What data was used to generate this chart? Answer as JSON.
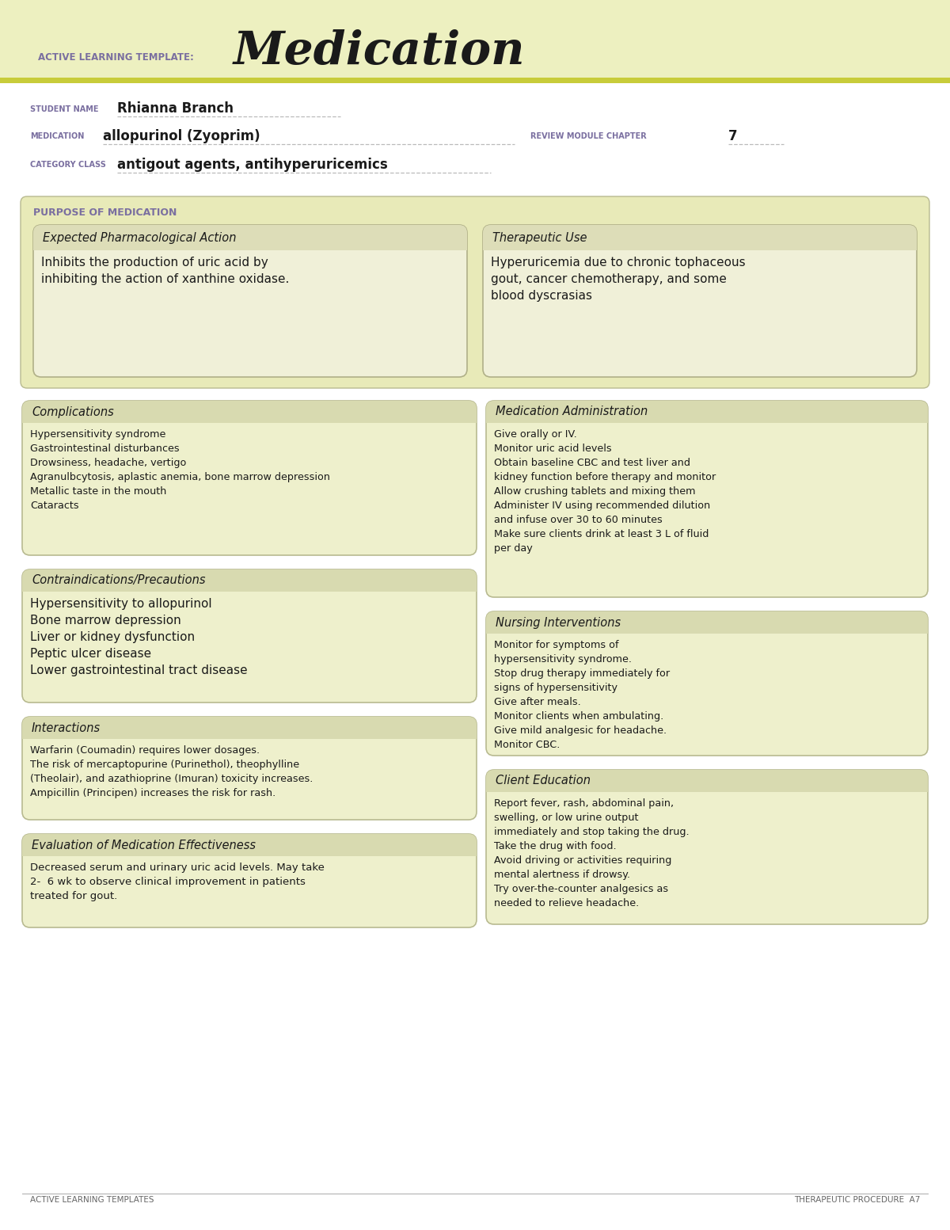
{
  "white": "#ffffff",
  "page_bg": "#ffffff",
  "header_bg": "#edf0c0",
  "header_stripe": "#c8cc3a",
  "box_bg": "#eef0cc",
  "box_header_bg": "#dddeb8",
  "box_border": "#b8ba90",
  "purpose_bg": "#e8eab8",
  "text_dark": "#1a1a1a",
  "label_color": "#7a6fa0",
  "footer_text": "#666666",
  "title_text": "Medication",
  "active_learning_label": "ACTIVE LEARNING TEMPLATE:",
  "student_name_label": "STUDENT NAME",
  "student_name": "Rhianna Branch",
  "medication_label": "MEDICATION",
  "medication": "allopurinol (Zyoprim)",
  "review_label": "REVIEW MODULE CHAPTER",
  "review_number": "7",
  "category_label": "CATEGORY CLASS",
  "category": "antigout agents, antihyperuricemics",
  "purpose_label": "PURPOSE OF MEDICATION",
  "epa_title": "Expected Pharmacological Action",
  "epa_text": "Inhibits the production of uric acid by\ninhibiting the action of xanthine oxidase.",
  "tu_title": "Therapeutic Use",
  "tu_text": "Hyperuricemia due to chronic tophaceous\ngout, cancer chemotherapy, and some\nblood dyscrasias",
  "comp_title": "Complications",
  "comp_text": "Hypersensitivity syndrome\nGastrointestinal disturbances\nDrowsiness, headache, vertigo\nAgranulbcytosis, aplastic anemia, bone marrow depression\nMetallic taste in the mouth\nCataracts",
  "medadmin_title": "Medication Administration",
  "medadmin_text": "Give orally or IV.\nMonitor uric acid levels\nObtain baseline CBC and test liver and\nkidney function before therapy and monitor\nAllow crushing tablets and mixing them\nAdminister IV using recommended dilution\nand infuse over 30 to 60 minutes\nMake sure clients drink at least 3 L of fluid\nper day",
  "contra_title": "Contraindications/Precautions",
  "contra_text": "Hypersensitivity to allopurinol\nBone marrow depression\nLiver or kidney dysfunction\nPeptic ulcer disease\nLower gastrointestinal tract disease",
  "nursing_title": "Nursing Interventions",
  "nursing_text": "Monitor for symptoms of\nhypersensitivity syndrome.\nStop drug therapy immediately for\nsigns of hypersensitivity\nGive after meals.\nMonitor clients when ambulating.\nGive mild analgesic for headache.\nMonitor CBC.",
  "interactions_title": "Interactions",
  "interactions_text": "Warfarin (Coumadin) requires lower dosages.\nThe risk of mercaptopurine (Purinethol), theophylline\n(Theolair), and azathioprine (Imuran) toxicity increases.\nAmpicillin (Principen) increases the risk for rash.",
  "client_title": "Client Education",
  "client_text": "Report fever, rash, abdominal pain,\nswelling, or low urine output\nimmediately and stop taking the drug.\nTake the drug with food.\nAvoid driving or activities requiring\nmental alertness if drowsy.\nTry over-the-counter analgesics as\nneeded to relieve headache.",
  "eval_title": "Evaluation of Medication Effectiveness",
  "eval_text": "Decreased serum and urinary uric acid levels. May take\n2-  6 wk to observe clinical improvement in patients\ntreated for gout.",
  "footer_left": "ACTIVE LEARNING TEMPLATES",
  "footer_right": "THERAPEUTIC PROCEDURE  A7"
}
